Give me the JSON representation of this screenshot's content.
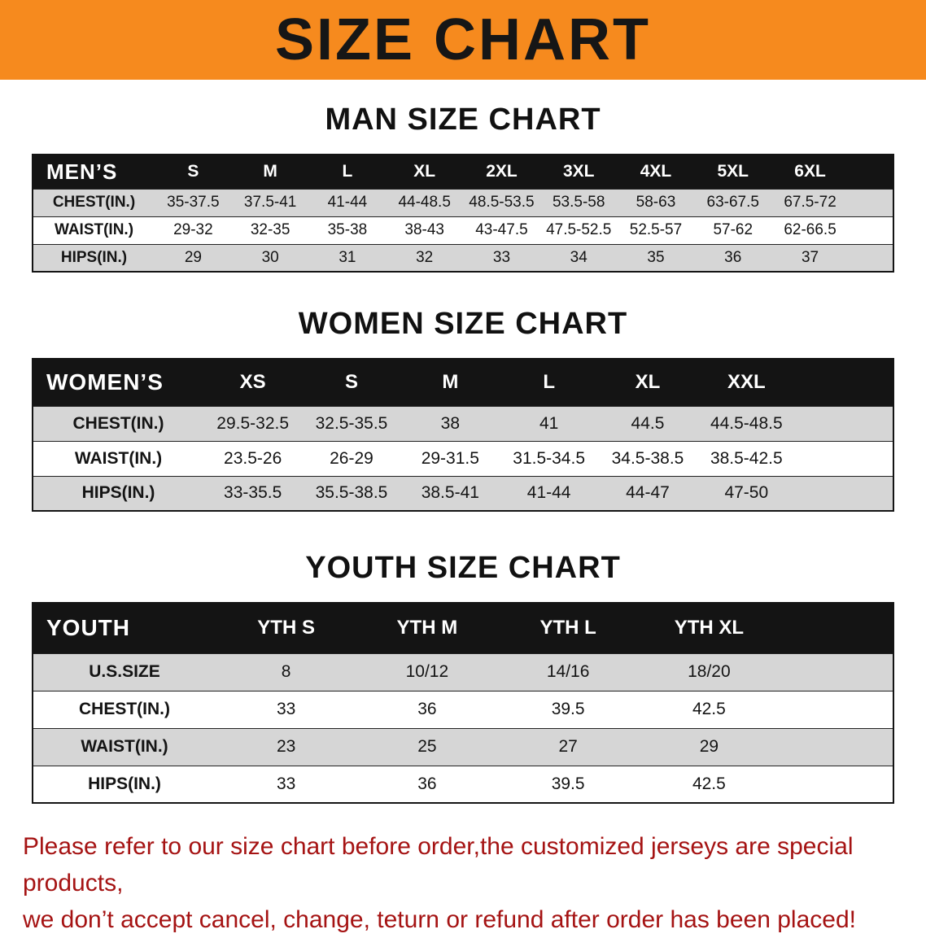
{
  "banner": {
    "title": "SIZE CHART"
  },
  "sections": [
    {
      "id": "men",
      "heading": "MAN SIZE CHART",
      "header": [
        "MEN’S",
        "S",
        "M",
        "L",
        "XL",
        "2XL",
        "3XL",
        "4XL",
        "5XL",
        "6XL"
      ],
      "rows": [
        [
          "CHEST(IN.)",
          "35-37.5",
          "37.5-41",
          "41-44",
          "44-48.5",
          "48.5-53.5",
          "53.5-58",
          "58-63",
          "63-67.5",
          "67.5-72"
        ],
        [
          "WAIST(IN.)",
          "29-32",
          "32-35",
          "35-38",
          "38-43",
          "43-47.5",
          "47.5-52.5",
          "52.5-57",
          "57-62",
          "62-66.5"
        ],
        [
          "HIPS(IN.)",
          "29",
          "30",
          "31",
          "32",
          "33",
          "34",
          "35",
          "36",
          "37"
        ]
      ]
    },
    {
      "id": "women",
      "heading": "WOMEN SIZE CHART",
      "header": [
        "WOMEN’S",
        "XS",
        "S",
        "M",
        "L",
        "XL",
        "XXL"
      ],
      "rows": [
        [
          "CHEST(IN.)",
          "29.5-32.5",
          "32.5-35.5",
          "38",
          "41",
          "44.5",
          "44.5-48.5"
        ],
        [
          "WAIST(IN.)",
          "23.5-26",
          "26-29",
          "29-31.5",
          "31.5-34.5",
          "34.5-38.5",
          "38.5-42.5"
        ],
        [
          "HIPS(IN.)",
          "33-35.5",
          "35.5-38.5",
          "38.5-41",
          "41-44",
          "44-47",
          "47-50"
        ]
      ]
    },
    {
      "id": "youth",
      "heading": "YOUTH SIZE CHART",
      "header": [
        "YOUTH",
        "YTH S",
        "YTH M",
        "YTH L",
        "YTH XL"
      ],
      "rows": [
        [
          "U.S.SIZE",
          "8",
          "10/12",
          "14/16",
          "18/20"
        ],
        [
          "CHEST(IN.)",
          "33",
          "36",
          "39.5",
          "42.5"
        ],
        [
          "WAIST(IN.)",
          "23",
          "25",
          "27",
          "29"
        ],
        [
          "HIPS(IN.)",
          "33",
          "36",
          "39.5",
          "42.5"
        ]
      ]
    }
  ],
  "footer": {
    "line1": "Please refer to our size chart before order,the customized jerseys are special products,",
    "line2": "we don’t accept cancel, change, teturn or refund after order has been placed!"
  },
  "colors": {
    "banner_orange": "#f68a1e",
    "header_black": "#141414",
    "row_gray": "#d6d6d6",
    "footer_red": "#a51313"
  }
}
